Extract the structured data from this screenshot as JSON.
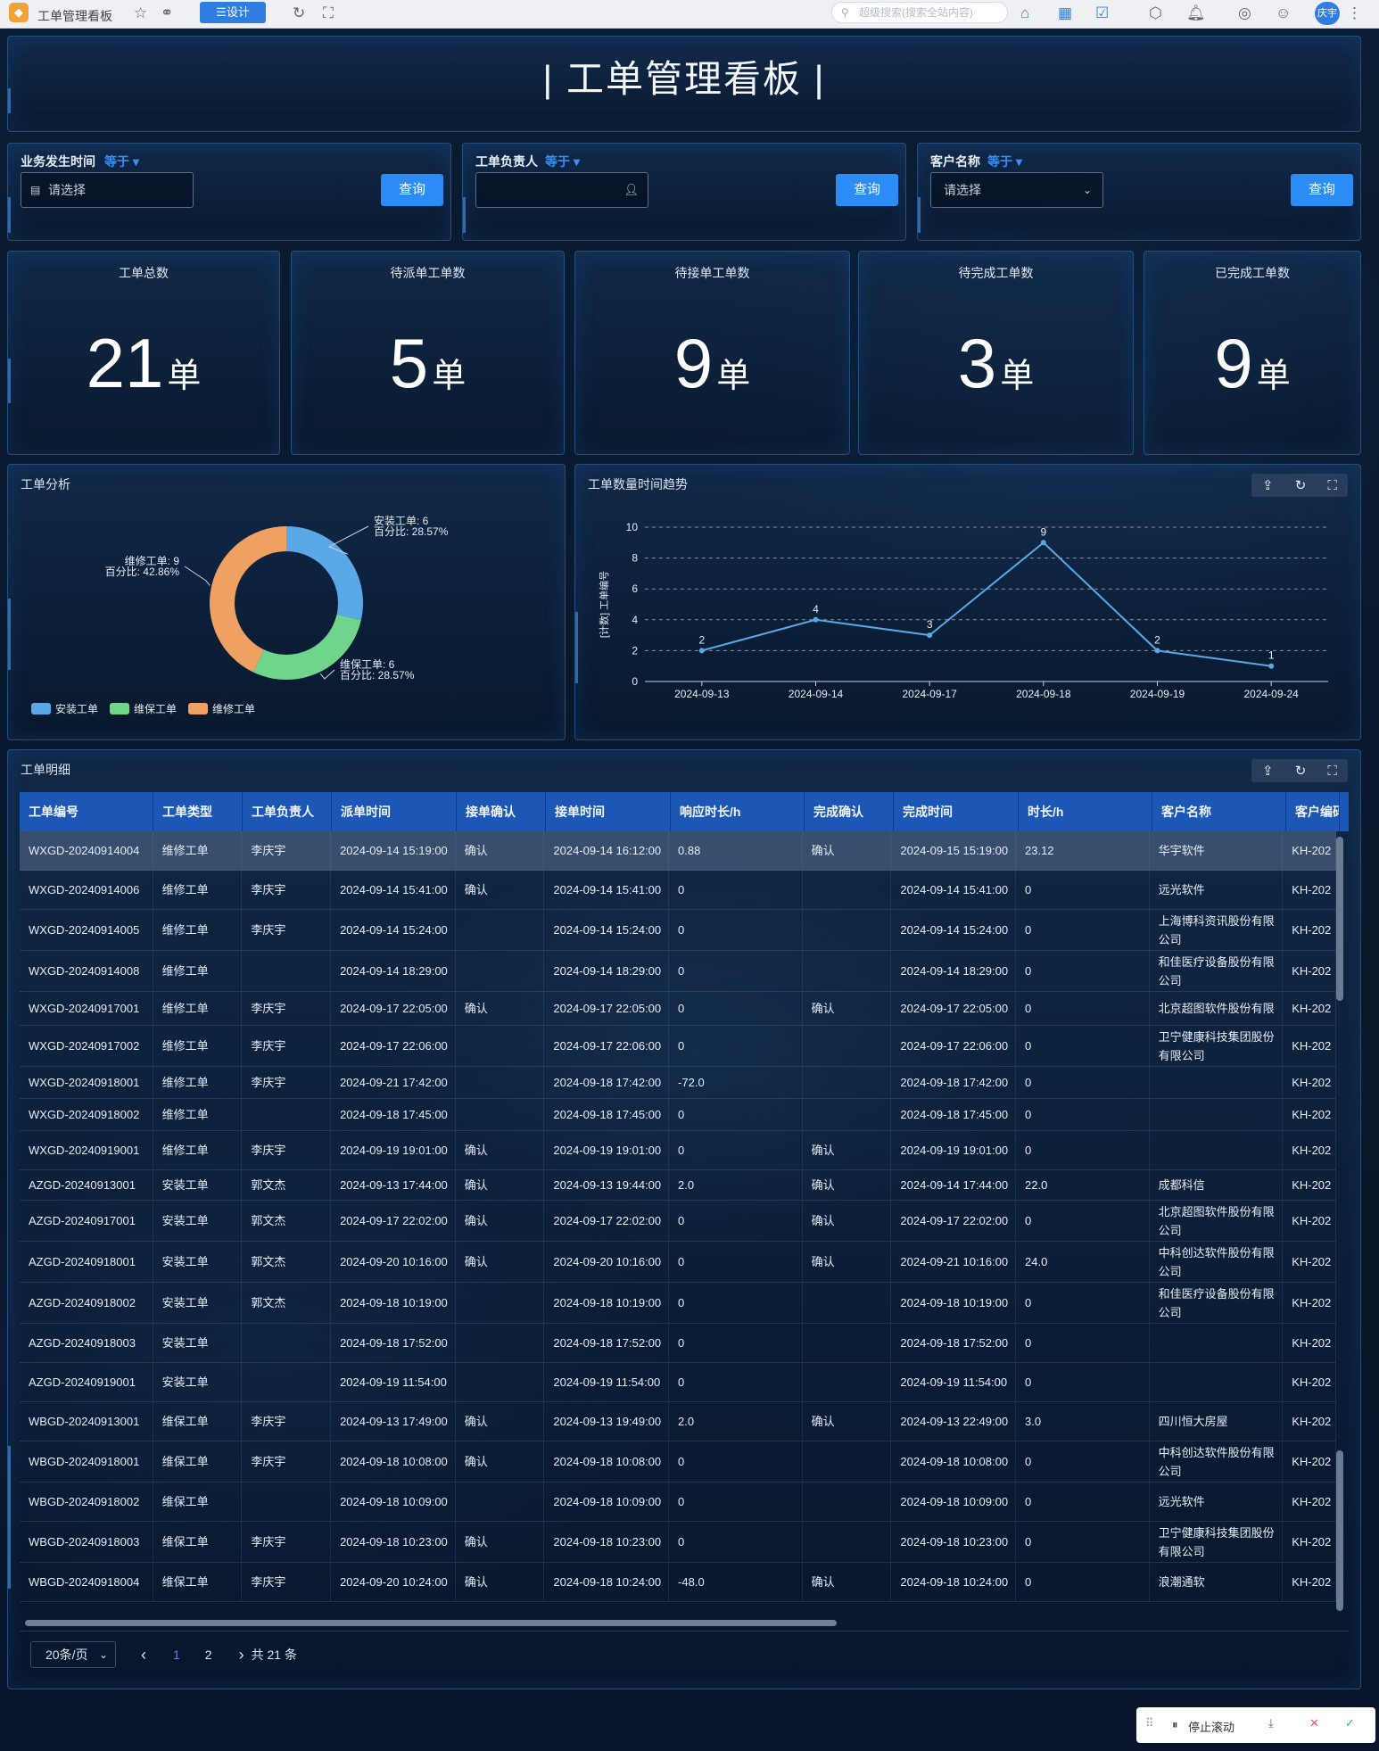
{
  "browser": {
    "tab_title": "工单管理看板",
    "design_label": "☰设计",
    "search_placeholder": "超级搜索(搜索全站内容)",
    "user": "庆宇"
  },
  "page_title": "|  工单管理看板  |",
  "filters": [
    {
      "label": "业务发生时间",
      "op": "等于 ▾",
      "placeholder": "请选择",
      "button": "查询"
    },
    {
      "label": "工单负责人",
      "op": "等于 ▾",
      "placeholder": "",
      "button": "查询"
    },
    {
      "label": "客户名称",
      "op": "等于 ▾",
      "placeholder": "请选择",
      "button": "查询"
    }
  ],
  "kpis": [
    {
      "label": "工单总数",
      "value": "21",
      "unit": "单"
    },
    {
      "label": "待派单工单数",
      "value": "5",
      "unit": "单"
    },
    {
      "label": "待接单工单数",
      "value": "9",
      "unit": "单"
    },
    {
      "label": "待完成工单数",
      "value": "3",
      "unit": "单"
    },
    {
      "label": "已完成工单数",
      "value": "9",
      "unit": "单"
    }
  ],
  "analysis": {
    "title": "工单分析"
  },
  "trend": {
    "title": "工单数量时间趋势"
  },
  "chart_data": [
    {
      "type": "pie",
      "title": "工单分析",
      "donut": true,
      "slices": [
        {
          "name": "安装工单",
          "value": 6,
          "label": "安装工单: 6",
          "pct_label": "百分比: 28.57%",
          "color": "#5aa9e6"
        },
        {
          "name": "维保工单",
          "value": 6,
          "label": "维保工单: 6",
          "pct_label": "百分比: 28.57%",
          "color": "#6fd58b"
        },
        {
          "name": "维修工单",
          "value": 9,
          "label": "维修工单: 9",
          "pct_label": "百分比: 42.86%",
          "color": "#eea162"
        }
      ],
      "legend": [
        "安装工单",
        "维保工单",
        "维修工单"
      ],
      "legend_position": "bottom-left"
    },
    {
      "type": "line",
      "title": "工单数量时间趋势",
      "ylabel": "[计数] 工单编号",
      "categories": [
        "2024-09-13",
        "2024-09-14",
        "2024-09-17",
        "2024-09-18",
        "2024-09-19",
        "2024-09-24"
      ],
      "values": [
        2,
        4,
        3,
        9,
        2,
        1
      ],
      "ylim": [
        0,
        10
      ],
      "yticks": [
        "0",
        "2",
        "4",
        "6",
        "8",
        "10"
      ],
      "grid": "dashed",
      "color": "#5aa9e6"
    }
  ],
  "detail": {
    "title": "工单明细",
    "columns": [
      "工单编号",
      "工单类型",
      "工单负责人",
      "派单时间",
      "接单确认",
      "接单时间",
      "响应时长/h",
      "完成确认",
      "完成时间",
      "时长/h",
      "客户名称",
      "客户编码"
    ],
    "rows": [
      [
        "WXGD-20240914004",
        "维修工单",
        "李庆宇",
        "2024-09-14 15:19:00",
        "确认",
        "2024-09-14 16:12:00",
        "0.88",
        "确认",
        "2024-09-15 15:19:00",
        "23.12",
        "华宇软件",
        "KH-202"
      ],
      [
        "WXGD-20240914006",
        "维修工单",
        "李庆宇",
        "2024-09-14 15:41:00",
        "确认",
        "2024-09-14 15:41:00",
        "0",
        "",
        "2024-09-14 15:41:00",
        "0",
        "远光软件",
        "KH-202"
      ],
      [
        "WXGD-20240914005",
        "维修工单",
        "李庆宇",
        "2024-09-14 15:24:00",
        "",
        "2024-09-14 15:24:00",
        "0",
        "",
        "2024-09-14 15:24:00",
        "0",
        "上海博科资讯股份有限公司",
        "KH-202"
      ],
      [
        "WXGD-20240914008",
        "维修工单",
        "",
        "2024-09-14 18:29:00",
        "",
        "2024-09-14 18:29:00",
        "0",
        "",
        "2024-09-14 18:29:00",
        "0",
        "和佳医疗设备股份有限公司",
        "KH-202"
      ],
      [
        "WXGD-20240917001",
        "维修工单",
        "李庆宇",
        "2024-09-17 22:05:00",
        "确认",
        "2024-09-17 22:05:00",
        "0",
        "确认",
        "2024-09-17 22:05:00",
        "0",
        "北京超图软件股份有限",
        "KH-202"
      ],
      [
        "WXGD-20240917002",
        "维修工单",
        "李庆宇",
        "2024-09-17 22:06:00",
        "",
        "2024-09-17 22:06:00",
        "0",
        "",
        "2024-09-17 22:06:00",
        "0",
        "卫宁健康科技集团股份有限公司",
        "KH-202"
      ],
      [
        "WXGD-20240918001",
        "维修工单",
        "李庆宇",
        "2024-09-21 17:42:00",
        "",
        "2024-09-18 17:42:00",
        "-72.0",
        "",
        "2024-09-18 17:42:00",
        "0",
        "",
        "KH-202"
      ],
      [
        "WXGD-20240918002",
        "维修工单",
        "",
        "2024-09-18 17:45:00",
        "",
        "2024-09-18 17:45:00",
        "0",
        "",
        "2024-09-18 17:45:00",
        "0",
        "",
        "KH-202"
      ],
      [
        "WXGD-20240919001",
        "维修工单",
        "李庆宇",
        "2024-09-19 19:01:00",
        "确认",
        "2024-09-19 19:01:00",
        "0",
        "确认",
        "2024-09-19 19:01:00",
        "0",
        "",
        "KH-202"
      ],
      [
        "AZGD-20240913001",
        "安装工单",
        "郭文杰",
        "2024-09-13 17:44:00",
        "确认",
        "2024-09-13 19:44:00",
        "2.0",
        "确认",
        "2024-09-14 17:44:00",
        "22.0",
        "成都科信",
        "KH-202"
      ],
      [
        "AZGD-20240917001",
        "安装工单",
        "郭文杰",
        "2024-09-17 22:02:00",
        "确认",
        "2024-09-17 22:02:00",
        "0",
        "确认",
        "2024-09-17 22:02:00",
        "0",
        "北京超图软件股份有限公司",
        "KH-202"
      ],
      [
        "AZGD-20240918001",
        "安装工单",
        "郭文杰",
        "2024-09-20 10:16:00",
        "确认",
        "2024-09-20 10:16:00",
        "0",
        "确认",
        "2024-09-21 10:16:00",
        "24.0",
        "中科创达软件股份有限公司",
        "KH-202"
      ],
      [
        "AZGD-20240918002",
        "安装工单",
        "郭文杰",
        "2024-09-18 10:19:00",
        "",
        "2024-09-18 10:19:00",
        "0",
        "",
        "2024-09-18 10:19:00",
        "0",
        "和佳医疗设备股份有限公司",
        "KH-202"
      ],
      [
        "AZGD-20240918003",
        "安装工单",
        "",
        "2024-09-18 17:52:00",
        "",
        "2024-09-18 17:52:00",
        "0",
        "",
        "2024-09-18 17:52:00",
        "0",
        "",
        "KH-202"
      ],
      [
        "AZGD-20240919001",
        "安装工单",
        "",
        "2024-09-19 11:54:00",
        "",
        "2024-09-19 11:54:00",
        "0",
        "",
        "2024-09-19 11:54:00",
        "0",
        "",
        "KH-202"
      ],
      [
        "WBGD-20240913001",
        "维保工单",
        "李庆宇",
        "2024-09-13 17:49:00",
        "确认",
        "2024-09-13 19:49:00",
        "2.0",
        "确认",
        "2024-09-13 22:49:00",
        "3.0",
        "四川恒大房屋",
        "KH-202"
      ],
      [
        "WBGD-20240918001",
        "维保工单",
        "李庆宇",
        "2024-09-18 10:08:00",
        "确认",
        "2024-09-18 10:08:00",
        "0",
        "",
        "2024-09-18 10:08:00",
        "0",
        "中科创达软件股份有限公司",
        "KH-202"
      ],
      [
        "WBGD-20240918002",
        "维保工单",
        "",
        "2024-09-18 10:09:00",
        "",
        "2024-09-18 10:09:00",
        "0",
        "",
        "2024-09-18 10:09:00",
        "0",
        "远光软件",
        "KH-202"
      ],
      [
        "WBGD-20240918003",
        "维保工单",
        "李庆宇",
        "2024-09-18 10:23:00",
        "确认",
        "2024-09-18 10:23:00",
        "0",
        "",
        "2024-09-18 10:23:00",
        "0",
        "卫宁健康科技集团股份有限公司",
        "KH-202"
      ],
      [
        "WBGD-20240918004",
        "维保工单",
        "李庆宇",
        "2024-09-20 10:24:00",
        "确认",
        "2024-09-18 10:24:00",
        "-48.0",
        "确认",
        "2024-09-18 10:24:00",
        "0",
        "浪潮通软",
        "KH-202"
      ]
    ]
  },
  "pager": {
    "size": "20条/页",
    "prev": "‹",
    "page1": "1",
    "page2": "2",
    "next": "›",
    "total": "共 21 条"
  },
  "float_bar": {
    "stop": "停止滚动"
  }
}
